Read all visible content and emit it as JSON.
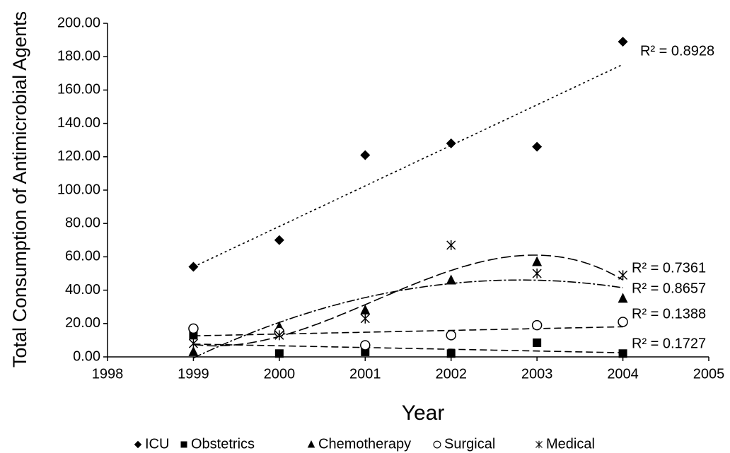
{
  "chart_data": {
    "type": "scatter",
    "xlabel": "Year",
    "ylabel": "Total Consumption of Antimicrobial Agents",
    "x": [
      1999,
      2000,
      2001,
      2002,
      2003,
      2004
    ],
    "series": [
      {
        "name": "ICU",
        "color": "#000000",
        "marker": "diamond",
        "trend": "linear",
        "trend_dash": "3,4",
        "r2_label": "R² = 0.8928",
        "values": [
          54,
          70,
          121,
          128,
          126,
          189
        ]
      },
      {
        "name": "Obstetrics",
        "color": "#000000",
        "marker": "square",
        "trend": "linear",
        "trend_dash": "10,5",
        "r2_label": "R² = 0.1727",
        "values": [
          13,
          2,
          3,
          2,
          8.5,
          2
        ]
      },
      {
        "name": "Chemotherapy",
        "color": "#000000",
        "marker": "triangle",
        "trend": "poly2",
        "trend_dash": "12,3,3,3",
        "r2_label": "R² = 0.8657",
        "values": [
          3,
          18,
          28,
          46,
          57,
          35
        ]
      },
      {
        "name": "Surgical",
        "color": "#000000",
        "marker": "circle",
        "trend": "linear",
        "trend_dash": "10,5",
        "r2_label": "R² = 0.1388",
        "values": [
          17,
          15,
          7,
          13,
          19,
          21
        ]
      },
      {
        "name": "Medical",
        "color": "#000000",
        "marker": "star",
        "trend": "poly3",
        "trend_dash": "14,5",
        "r2_label": "R² = 0.7361",
        "values": [
          8,
          13,
          23,
          67,
          50,
          49
        ]
      }
    ],
    "xlim": [
      1998,
      2005
    ],
    "xticks": [
      1998,
      1999,
      2000,
      2001,
      2002,
      2003,
      2004,
      2005
    ],
    "ylim": [
      0,
      200
    ],
    "yticks": [
      {
        "value": 0,
        "label": "0.00"
      },
      {
        "value": 20,
        "label": "20.00"
      },
      {
        "value": 40,
        "label": "40.00"
      },
      {
        "value": 60,
        "label": "60.00"
      },
      {
        "value": 80,
        "label": "80.00"
      },
      {
        "value": 100,
        "label": "100.00"
      },
      {
        "value": 120,
        "label": "120.00"
      },
      {
        "value": 140,
        "label": "140.00"
      },
      {
        "value": 160,
        "label": "160.00"
      },
      {
        "value": 180,
        "label": "180.00"
      },
      {
        "value": 200,
        "label": "200.00"
      }
    ],
    "grid": false,
    "legend": "bottom"
  }
}
